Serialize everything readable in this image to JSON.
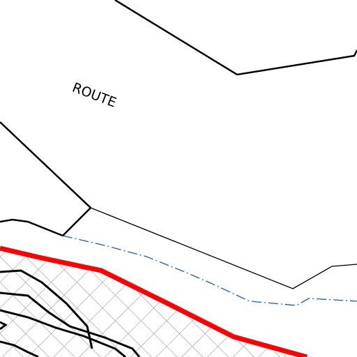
{
  "map": {
    "labels": [
      "ROUTE"
    ]
  }
}
